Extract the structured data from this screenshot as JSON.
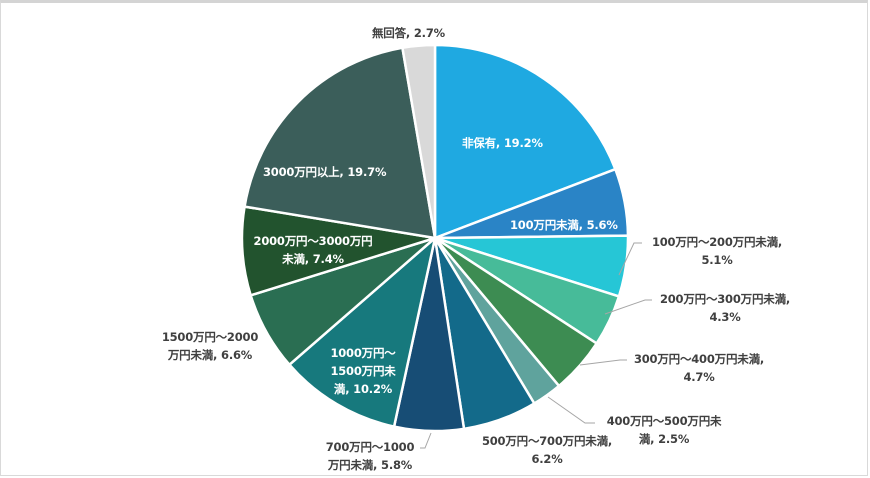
{
  "chart_data": {
    "type": "pie",
    "title": "",
    "start_angle_deg": 0,
    "direction": "clockwise",
    "categories": [
      "非保有",
      "100万円未満",
      "100万円～200万円未満",
      "200万円～300万円未満",
      "300万円～400万円未満",
      "400万円～500万円未満",
      "500万円～700万円未満",
      "700万円～1000万円未満",
      "1000万円～1500万円未満",
      "1500万円～2000万円未満",
      "2000万円～3000万円未満",
      "3000万円以上",
      "無回答"
    ],
    "values": [
      19.2,
      5.6,
      5.1,
      4.3,
      4.7,
      2.5,
      6.2,
      5.8,
      10.2,
      6.6,
      7.4,
      19.7,
      2.7
    ],
    "unit": "%",
    "colors": [
      "#1fa9e1",
      "#2a84c6",
      "#26c6d6",
      "#47bb99",
      "#3d8c52",
      "#5fa39d",
      "#136a8a",
      "#174d75",
      "#17797d",
      "#2a6e52",
      "#22532e",
      "#3b5e5a",
      "#d9d9d9"
    ],
    "legend": "none",
    "data_labels": [
      {
        "lines": [
          "非保有, 19.2%"
        ],
        "position": "inside"
      },
      {
        "lines": [
          "100万円未満, 5.6%"
        ],
        "position": "inside"
      },
      {
        "lines": [
          "100万円～200万円未満,",
          "5.1%"
        ],
        "position": "outside"
      },
      {
        "lines": [
          "200万円～300万円未満,",
          "4.3%"
        ],
        "position": "outside"
      },
      {
        "lines": [
          "300万円～400万円未満,",
          "4.7%"
        ],
        "position": "outside"
      },
      {
        "lines": [
          "400万円～500万円未",
          "満, 2.5%"
        ],
        "position": "outside"
      },
      {
        "lines": [
          "500万円～700万円未満,",
          "6.2%"
        ],
        "position": "outside"
      },
      {
        "lines": [
          "700万円～1000",
          "万円未満, 5.8%"
        ],
        "position": "outside"
      },
      {
        "lines": [
          "1000万円～",
          "1500万円未",
          "満, 10.2%"
        ],
        "position": "inside"
      },
      {
        "lines": [
          "1500万円～2000",
          "万円未満, 6.6%"
        ],
        "position": "outside"
      },
      {
        "lines": [
          "2000万円～3000万円",
          "未満, 7.4%"
        ],
        "position": "inside"
      },
      {
        "lines": [
          "3000万円以上, 19.7%"
        ],
        "position": "inside"
      },
      {
        "lines": [
          "無回答, 2.7%"
        ],
        "position": "outside"
      }
    ]
  },
  "labels": {
    "s0": "非保有, 19.2%",
    "s1": "100万円未満, 5.6%",
    "s2a": "100万円～200万円未満,",
    "s2b": "5.1%",
    "s3a": "200万円～300万円未満,",
    "s3b": "4.3%",
    "s4a": "300万円～400万円未満,",
    "s4b": "4.7%",
    "s5a": "400万円～500万円未",
    "s5b": "満, 2.5%",
    "s6a": "500万円～700万円未満,",
    "s6b": "6.2%",
    "s7a": "700万円～1000",
    "s7b": "万円未満, 5.8%",
    "s8a": "1000万円～",
    "s8b": "1500万円未",
    "s8c": "満, 10.2%",
    "s9a": "1500万円～2000",
    "s9b": "万円未満, 6.6%",
    "s10a": "2000万円～3000万円",
    "s10b": "未満, 7.4%",
    "s11": "3000万円以上, 19.7%",
    "s12": "無回答, 2.7%"
  }
}
